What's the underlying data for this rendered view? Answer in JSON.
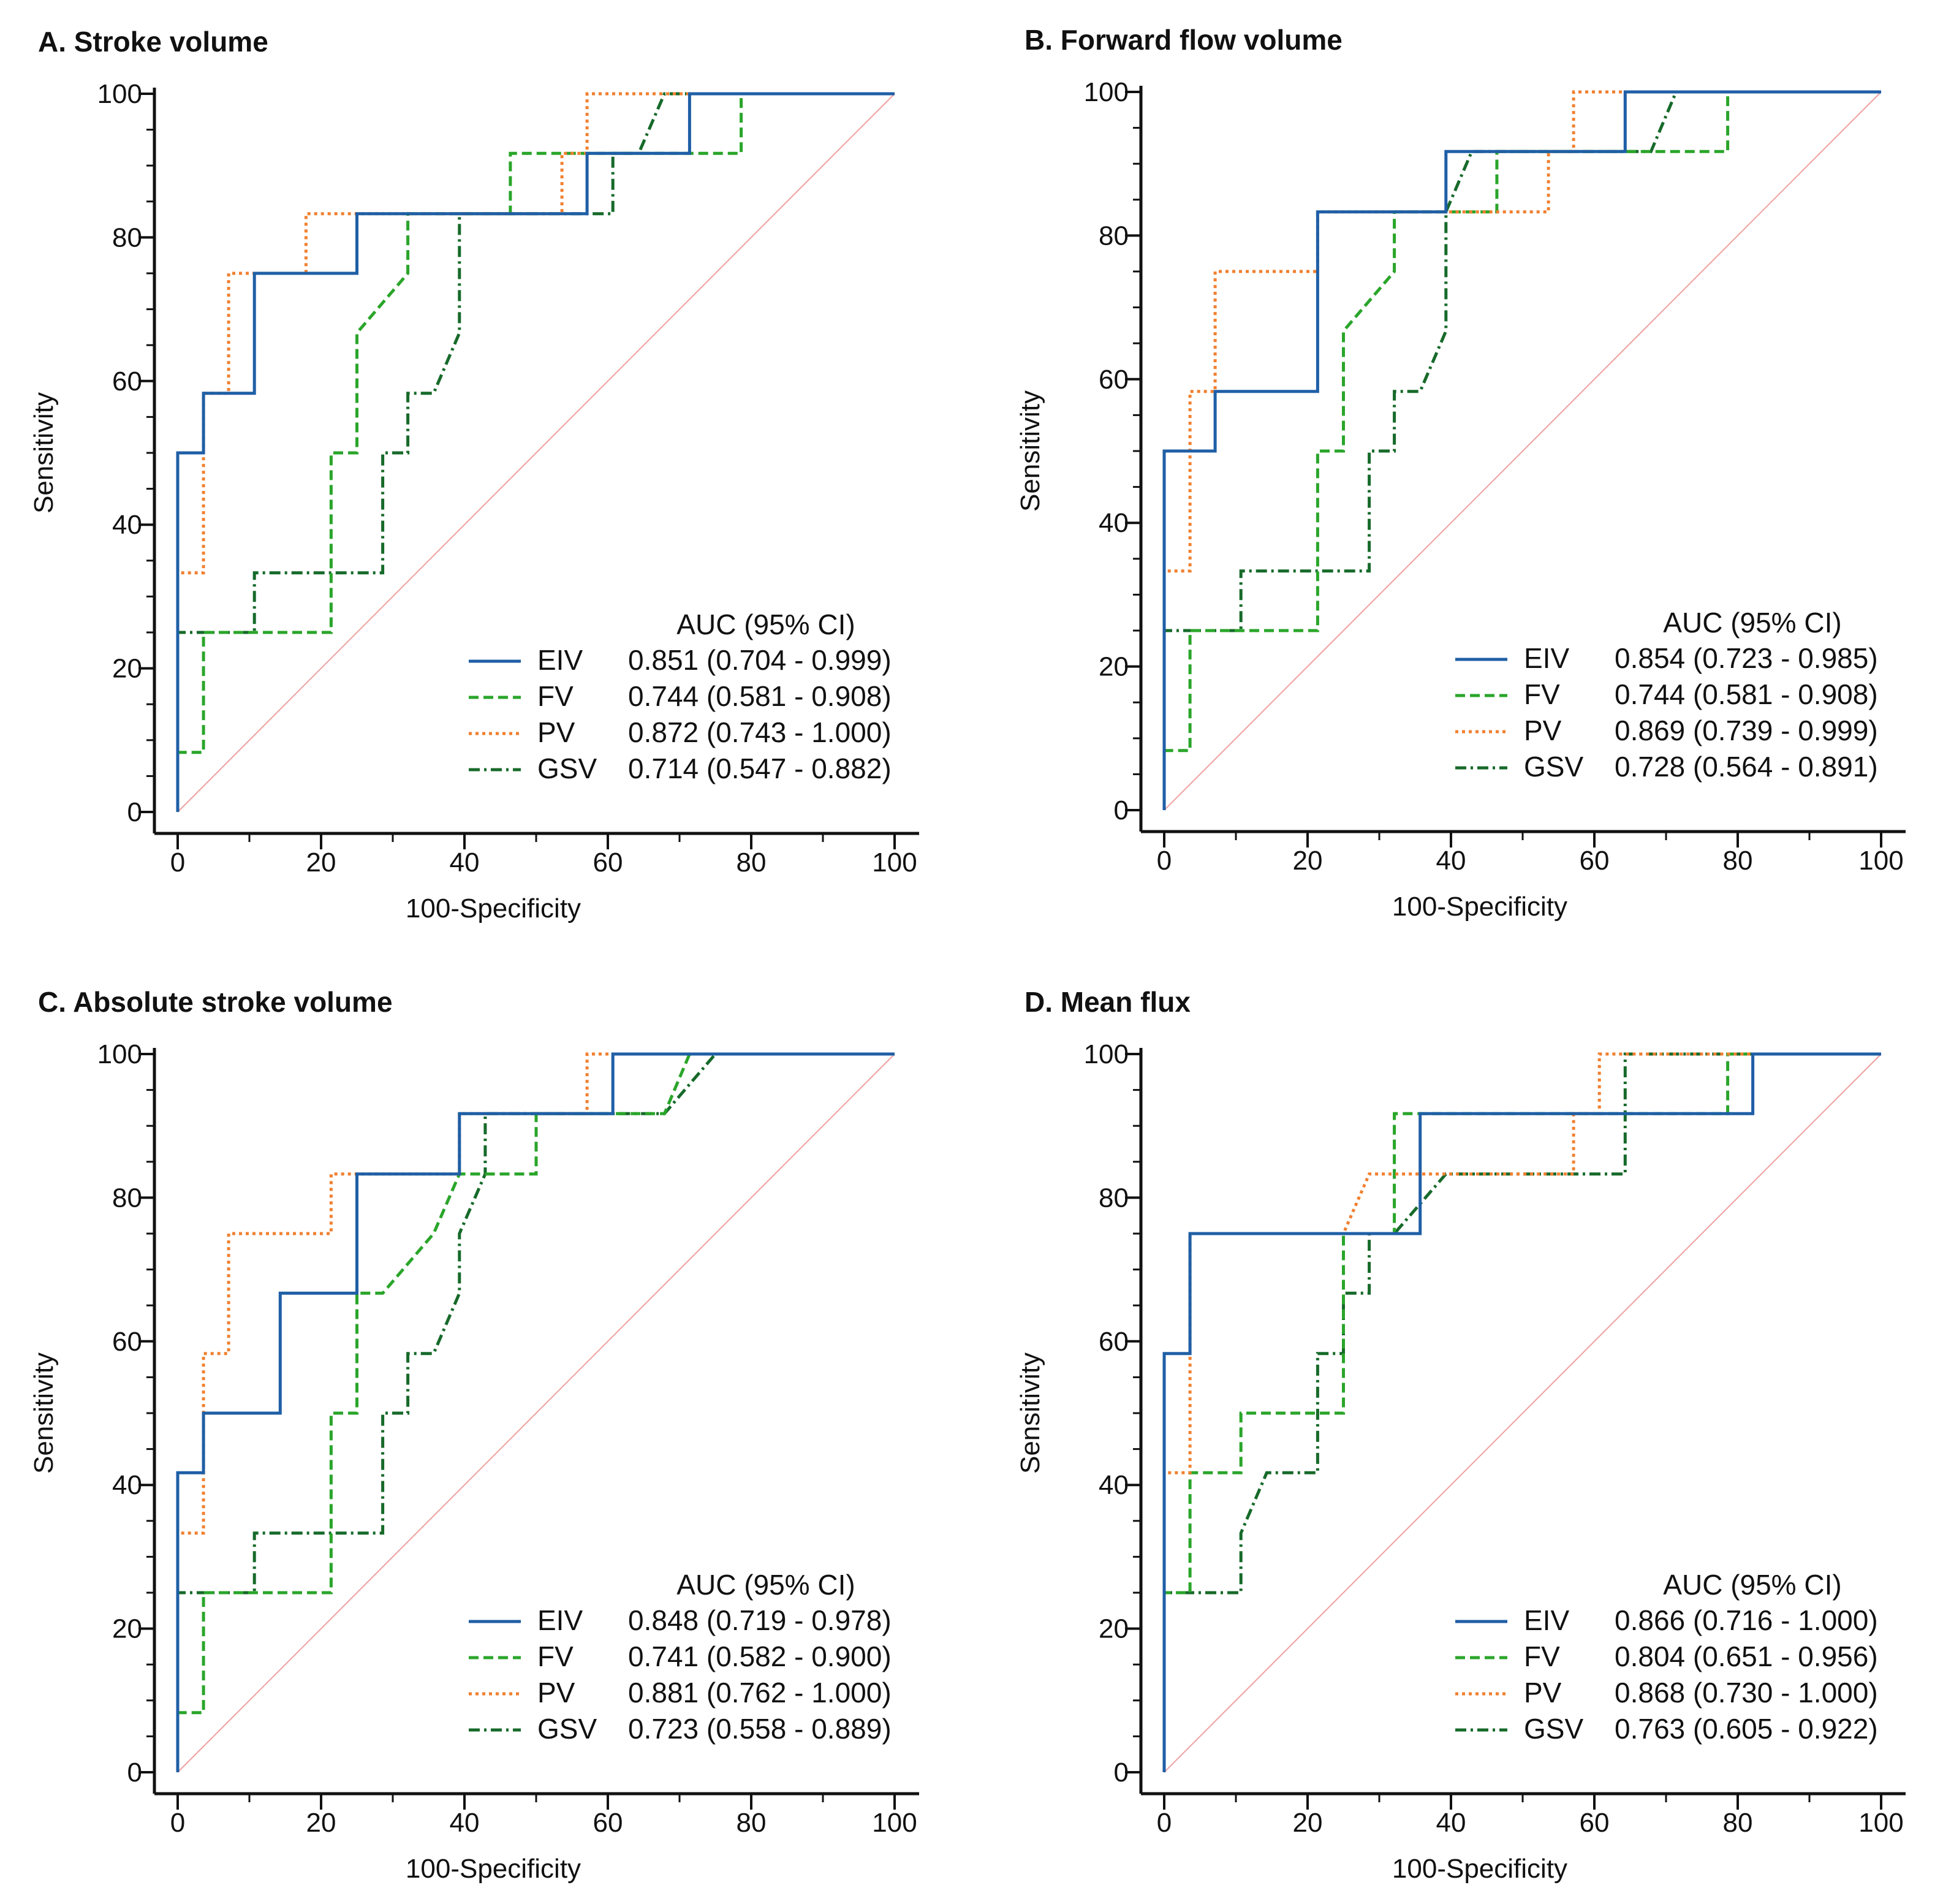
{
  "colors": {
    "EIV": "#1f5fa6",
    "FV": "#2aa52a",
    "PV": "#f08030",
    "GSV": "#176a2a",
    "diagonal": "#f0a0a0",
    "axis": "#111111"
  },
  "chart_data": [
    {
      "type": "line",
      "title": "A. Stroke volume",
      "xlabel": "100-Specificity",
      "ylabel": "Sensitivity",
      "xlim": [
        0,
        100
      ],
      "ylim": [
        0,
        100
      ],
      "xticks": [
        0,
        20,
        40,
        60,
        80,
        100
      ],
      "yticks": [
        0,
        20,
        40,
        60,
        80,
        100
      ],
      "legend_title": "AUC (95% CI)",
      "legend_position": "bottom-right",
      "series": [
        {
          "name": "EIV",
          "auc": "0.851 (0.704 - 0.999)",
          "points": [
            [
              0,
              0
            ],
            [
              0,
              50
            ],
            [
              3.6,
              50
            ],
            [
              3.6,
              58.3
            ],
            [
              10.7,
              58.3
            ],
            [
              10.7,
              75
            ],
            [
              25,
              75
            ],
            [
              25,
              83.3
            ],
            [
              57.1,
              83.3
            ],
            [
              57.1,
              91.7
            ],
            [
              71.4,
              91.7
            ],
            [
              71.4,
              100
            ],
            [
              100,
              100
            ]
          ]
        },
        {
          "name": "FV",
          "auc": "0.744 (0.581 - 0.908)",
          "points": [
            [
              0,
              0
            ],
            [
              0,
              8.3
            ],
            [
              3.6,
              8.3
            ],
            [
              3.6,
              25
            ],
            [
              21.4,
              25
            ],
            [
              21.4,
              50
            ],
            [
              25,
              50
            ],
            [
              25,
              66.7
            ],
            [
              32.1,
              75
            ],
            [
              32.1,
              83.3
            ],
            [
              46.4,
              83.3
            ],
            [
              46.4,
              91.7
            ],
            [
              78.6,
              91.7
            ],
            [
              78.6,
              100
            ],
            [
              100,
              100
            ]
          ]
        },
        {
          "name": "PV",
          "auc": "0.872 (0.743 - 1.000)",
          "points": [
            [
              0,
              0
            ],
            [
              0,
              33.3
            ],
            [
              3.6,
              33.3
            ],
            [
              3.6,
              58.3
            ],
            [
              7.1,
              58.3
            ],
            [
              7.1,
              75
            ],
            [
              17.9,
              75
            ],
            [
              17.9,
              83.3
            ],
            [
              53.6,
              83.3
            ],
            [
              53.6,
              91.7
            ],
            [
              57.1,
              91.7
            ],
            [
              57.1,
              100
            ],
            [
              100,
              100
            ]
          ]
        },
        {
          "name": "GSV",
          "auc": "0.714 (0.547 - 0.882)",
          "points": [
            [
              0,
              0
            ],
            [
              0,
              25
            ],
            [
              10.7,
              25
            ],
            [
              10.7,
              33.3
            ],
            [
              28.6,
              33.3
            ],
            [
              28.6,
              50
            ],
            [
              32.1,
              50
            ],
            [
              32.1,
              58.3
            ],
            [
              35.7,
              58.3
            ],
            [
              39.3,
              66.7
            ],
            [
              39.3,
              83.3
            ],
            [
              60.7,
              83.3
            ],
            [
              60.7,
              91.7
            ],
            [
              64.3,
              91.7
            ],
            [
              67.9,
              100
            ],
            [
              100,
              100
            ]
          ]
        }
      ]
    },
    {
      "type": "line",
      "title": "B. Forward flow volume",
      "xlabel": "100-Specificity",
      "ylabel": "Sensitivity",
      "xlim": [
        0,
        100
      ],
      "ylim": [
        0,
        100
      ],
      "xticks": [
        0,
        20,
        40,
        60,
        80,
        100
      ],
      "yticks": [
        0,
        20,
        40,
        60,
        80,
        100
      ],
      "legend_title": "AUC (95% CI)",
      "legend_position": "bottom-right",
      "series": [
        {
          "name": "EIV",
          "auc": "0.854 (0.723 - 0.985)",
          "points": [
            [
              0,
              0
            ],
            [
              0,
              50
            ],
            [
              7.1,
              50
            ],
            [
              7.1,
              58.3
            ],
            [
              21.4,
              58.3
            ],
            [
              21.4,
              83.3
            ],
            [
              39.3,
              83.3
            ],
            [
              39.3,
              91.7
            ],
            [
              64.3,
              91.7
            ],
            [
              64.3,
              100
            ],
            [
              100,
              100
            ]
          ]
        },
        {
          "name": "FV",
          "auc": "0.744 (0.581 - 0.908)",
          "points": [
            [
              0,
              0
            ],
            [
              0,
              8.3
            ],
            [
              3.6,
              8.3
            ],
            [
              3.6,
              25
            ],
            [
              21.4,
              25
            ],
            [
              21.4,
              50
            ],
            [
              25,
              50
            ],
            [
              25,
              66.7
            ],
            [
              32.1,
              75
            ],
            [
              32.1,
              83.3
            ],
            [
              46.4,
              83.3
            ],
            [
              46.4,
              91.7
            ],
            [
              78.6,
              91.7
            ],
            [
              78.6,
              100
            ],
            [
              100,
              100
            ]
          ]
        },
        {
          "name": "PV",
          "auc": "0.869 (0.739 - 0.999)",
          "points": [
            [
              0,
              0
            ],
            [
              0,
              33.3
            ],
            [
              3.6,
              33.3
            ],
            [
              3.6,
              58.3
            ],
            [
              7.1,
              58.3
            ],
            [
              7.1,
              75
            ],
            [
              21.4,
              75
            ],
            [
              21.4,
              83.3
            ],
            [
              53.6,
              83.3
            ],
            [
              53.6,
              91.7
            ],
            [
              57.1,
              91.7
            ],
            [
              57.1,
              100
            ],
            [
              100,
              100
            ]
          ]
        },
        {
          "name": "GSV",
          "auc": "0.728 (0.564 - 0.891)",
          "points": [
            [
              0,
              0
            ],
            [
              0,
              25
            ],
            [
              10.7,
              25
            ],
            [
              10.7,
              33.3
            ],
            [
              28.6,
              33.3
            ],
            [
              28.6,
              50
            ],
            [
              32.1,
              50
            ],
            [
              32.1,
              58.3
            ],
            [
              35.7,
              58.3
            ],
            [
              39.3,
              66.7
            ],
            [
              39.3,
              83.3
            ],
            [
              42.9,
              91.7
            ],
            [
              67.9,
              91.7
            ],
            [
              71.4,
              100
            ],
            [
              100,
              100
            ]
          ]
        }
      ]
    },
    {
      "type": "line",
      "title": "C. Absolute stroke volume",
      "xlabel": "100-Specificity",
      "ylabel": "Sensitivity",
      "xlim": [
        0,
        100
      ],
      "ylim": [
        0,
        100
      ],
      "xticks": [
        0,
        20,
        40,
        60,
        80,
        100
      ],
      "yticks": [
        0,
        20,
        40,
        60,
        80,
        100
      ],
      "legend_title": "AUC (95% CI)",
      "legend_position": "bottom-right",
      "series": [
        {
          "name": "EIV",
          "auc": "0.848 (0.719 - 0.978)",
          "points": [
            [
              0,
              0
            ],
            [
              0,
              41.7
            ],
            [
              3.6,
              41.7
            ],
            [
              3.6,
              50
            ],
            [
              14.3,
              50
            ],
            [
              14.3,
              66.7
            ],
            [
              25,
              66.7
            ],
            [
              25,
              83.3
            ],
            [
              39.3,
              83.3
            ],
            [
              39.3,
              91.7
            ],
            [
              60.7,
              91.7
            ],
            [
              60.7,
              100
            ],
            [
              100,
              100
            ]
          ]
        },
        {
          "name": "FV",
          "auc": "0.741 (0.582 - 0.900)",
          "points": [
            [
              0,
              0
            ],
            [
              0,
              8.3
            ],
            [
              3.6,
              8.3
            ],
            [
              3.6,
              25
            ],
            [
              21.4,
              25
            ],
            [
              21.4,
              50
            ],
            [
              25,
              50
            ],
            [
              25,
              66.7
            ],
            [
              28.6,
              66.7
            ],
            [
              35.7,
              75
            ],
            [
              39.3,
              83.3
            ],
            [
              50,
              83.3
            ],
            [
              50,
              91.7
            ],
            [
              67.9,
              91.7
            ],
            [
              71.4,
              100
            ],
            [
              100,
              100
            ]
          ]
        },
        {
          "name": "PV",
          "auc": "0.881 (0.762 - 1.000)",
          "points": [
            [
              0,
              0
            ],
            [
              0,
              33.3
            ],
            [
              3.6,
              33.3
            ],
            [
              3.6,
              58.3
            ],
            [
              7.1,
              58.3
            ],
            [
              7.1,
              75
            ],
            [
              21.4,
              75
            ],
            [
              21.4,
              83.3
            ],
            [
              39.3,
              83.3
            ],
            [
              39.3,
              91.7
            ],
            [
              57.1,
              91.7
            ],
            [
              57.1,
              100
            ],
            [
              100,
              100
            ]
          ]
        },
        {
          "name": "GSV",
          "auc": "0.723 (0.558 - 0.889)",
          "points": [
            [
              0,
              0
            ],
            [
              0,
              25
            ],
            [
              10.7,
              25
            ],
            [
              10.7,
              33.3
            ],
            [
              28.6,
              33.3
            ],
            [
              28.6,
              50
            ],
            [
              32.1,
              50
            ],
            [
              32.1,
              58.3
            ],
            [
              35.7,
              58.3
            ],
            [
              39.3,
              66.7
            ],
            [
              39.3,
              75
            ],
            [
              42.9,
              83.3
            ],
            [
              42.9,
              91.7
            ],
            [
              67.9,
              91.7
            ],
            [
              75,
              100
            ],
            [
              100,
              100
            ]
          ]
        }
      ]
    },
    {
      "type": "line",
      "title": "D. Mean flux",
      "xlabel": "100-Specificity",
      "ylabel": "Sensitivity",
      "xlim": [
        0,
        100
      ],
      "ylim": [
        0,
        100
      ],
      "xticks": [
        0,
        20,
        40,
        60,
        80,
        100
      ],
      "yticks": [
        0,
        20,
        40,
        60,
        80,
        100
      ],
      "legend_title": "AUC (95% CI)",
      "legend_position": "bottom-right",
      "series": [
        {
          "name": "EIV",
          "auc": "0.866 (0.716 - 1.000)",
          "points": [
            [
              0,
              0
            ],
            [
              0,
              58.3
            ],
            [
              3.6,
              58.3
            ],
            [
              3.6,
              75
            ],
            [
              35.7,
              75
            ],
            [
              35.7,
              91.7
            ],
            [
              82.1,
              91.7
            ],
            [
              82.1,
              100
            ],
            [
              100,
              100
            ]
          ]
        },
        {
          "name": "FV",
          "auc": "0.804 (0.651 - 0.956)",
          "points": [
            [
              0,
              0
            ],
            [
              0,
              25
            ],
            [
              3.6,
              25
            ],
            [
              3.6,
              41.7
            ],
            [
              10.7,
              41.7
            ],
            [
              10.7,
              50
            ],
            [
              25,
              50
            ],
            [
              25,
              75
            ],
            [
              32.1,
              75
            ],
            [
              32.1,
              91.7
            ],
            [
              78.6,
              91.7
            ],
            [
              78.6,
              100
            ],
            [
              100,
              100
            ]
          ]
        },
        {
          "name": "PV",
          "auc": "0.868 (0.730 - 1.000)",
          "points": [
            [
              0,
              0
            ],
            [
              0,
              41.7
            ],
            [
              3.6,
              41.7
            ],
            [
              3.6,
              75
            ],
            [
              25,
              75
            ],
            [
              28.6,
              83.3
            ],
            [
              57.1,
              83.3
            ],
            [
              57.1,
              91.7
            ],
            [
              60.7,
              91.7
            ],
            [
              60.7,
              100
            ],
            [
              100,
              100
            ]
          ]
        },
        {
          "name": "GSV",
          "auc": "0.763 (0.605 - 0.922)",
          "points": [
            [
              0,
              0
            ],
            [
              0,
              25
            ],
            [
              10.7,
              25
            ],
            [
              10.7,
              33.3
            ],
            [
              14.3,
              41.7
            ],
            [
              21.4,
              41.7
            ],
            [
              21.4,
              58.3
            ],
            [
              25,
              58.3
            ],
            [
              25,
              66.7
            ],
            [
              28.6,
              66.7
            ],
            [
              28.6,
              75
            ],
            [
              32.1,
              75
            ],
            [
              39.3,
              83.3
            ],
            [
              64.3,
              83.3
            ],
            [
              64.3,
              100
            ],
            [
              100,
              100
            ]
          ]
        }
      ]
    }
  ]
}
